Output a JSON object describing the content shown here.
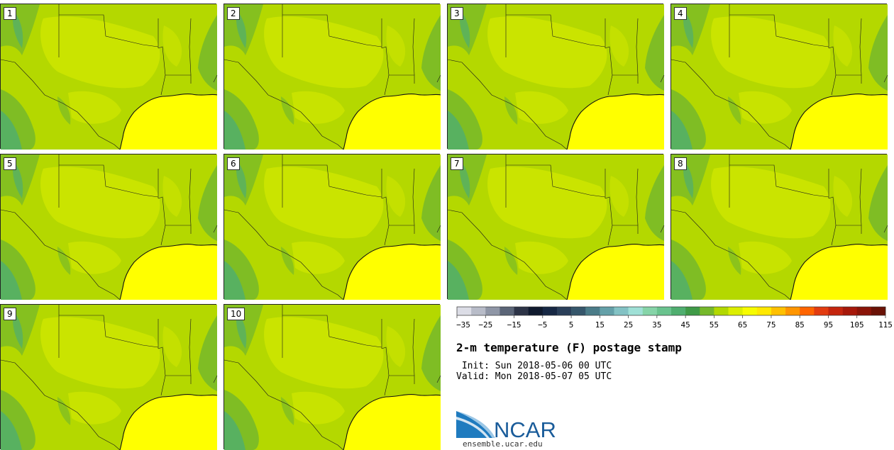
{
  "panels": [
    {
      "label": "1"
    },
    {
      "label": "2"
    },
    {
      "label": "3"
    },
    {
      "label": "4"
    },
    {
      "label": "5"
    },
    {
      "label": "6"
    },
    {
      "label": "7"
    },
    {
      "label": "8"
    },
    {
      "label": "9"
    },
    {
      "label": "10"
    }
  ],
  "colorbar": {
    "colors": [
      "#dcdde6",
      "#b8bcc8",
      "#8f96a6",
      "#5b6577",
      "#2d3447",
      "#101a2e",
      "#172844",
      "#2a3f59",
      "#36566b",
      "#4b7c88",
      "#64a0a8",
      "#83c2c4",
      "#9fe0d6",
      "#86d4a8",
      "#6ac38e",
      "#4fae6f",
      "#3f9a47",
      "#75b82a",
      "#b2d800",
      "#dcee00",
      "#f7fc00",
      "#ffe800",
      "#ffc000",
      "#ff9500",
      "#ff6400",
      "#e23c10",
      "#c4250e",
      "#a6180a",
      "#8a1408",
      "#6a1206"
    ],
    "tick_labels": [
      "−35",
      "−25",
      "−15",
      "−5",
      "5",
      "15",
      "25",
      "35",
      "45",
      "55",
      "65",
      "75",
      "85",
      "95",
      "105",
      "115"
    ]
  },
  "title": "2-m temperature (F) postage stamp",
  "init_line": " Init: Sun 2018-05-06 00 UTC",
  "valid_line": "Valid: Mon 2018-05-07 05 UTC",
  "logo": {
    "name": "NCAR",
    "url": "ensemble.ucar.edu"
  },
  "map_colors": {
    "land": "#b4d800",
    "land_light": "#dcee00",
    "gulf": "#ffff00",
    "highland": "#75b82a",
    "mountain": "#4fae6f",
    "boundary": "#1a1a1a"
  }
}
